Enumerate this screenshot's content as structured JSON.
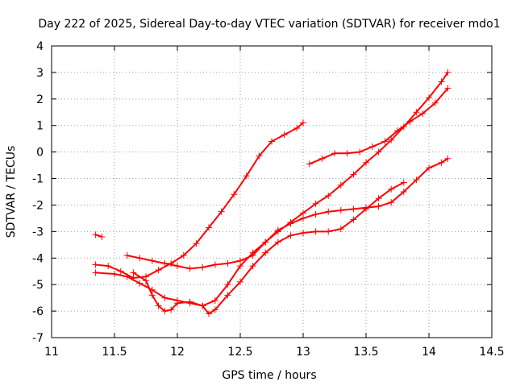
{
  "chart_data": {
    "type": "scatter",
    "title": "Day 222 of 2025, Sidereal Day-to-day VTEC variation (SDTVAR) for receiver mdo1",
    "xlabel": "GPS time / hours",
    "ylabel": "SDTVAR / TECUs",
    "xlim": [
      11,
      14.5
    ],
    "ylim": [
      -7,
      4
    ],
    "xticks": [
      "11",
      "11.5",
      "12",
      "12.5",
      "13",
      "13.5",
      "14",
      "14.5"
    ],
    "yticks": [
      "-7",
      "-6",
      "-5",
      "-4",
      "-3",
      "-2",
      "-1",
      "0",
      "1",
      "2",
      "3",
      "4"
    ],
    "grid": true,
    "color": "#ff0000",
    "series": [
      {
        "points": [
          [
            11.35,
            -3.12
          ],
          [
            11.4,
            -3.2
          ]
        ]
      },
      {
        "points": [
          [
            11.65,
            -4.55
          ],
          [
            11.75,
            -4.85
          ],
          [
            11.8,
            -5.4
          ],
          [
            11.85,
            -5.8
          ],
          [
            11.9,
            -6.0
          ],
          [
            11.95,
            -5.95
          ],
          [
            12.0,
            -5.7
          ],
          [
            12.1,
            -5.65
          ],
          [
            12.2,
            -5.8
          ],
          [
            12.25,
            -6.1
          ],
          [
            12.3,
            -5.95
          ],
          [
            12.4,
            -5.4
          ],
          [
            12.5,
            -4.9
          ],
          [
            12.6,
            -4.3
          ],
          [
            12.7,
            -3.8
          ],
          [
            12.8,
            -3.4
          ],
          [
            12.9,
            -3.15
          ],
          [
            13.0,
            -3.05
          ],
          [
            13.1,
            -3.0
          ],
          [
            13.2,
            -3.0
          ],
          [
            13.3,
            -2.9
          ],
          [
            13.4,
            -2.55
          ],
          [
            13.5,
            -2.15
          ],
          [
            13.6,
            -1.75
          ],
          [
            13.7,
            -1.4
          ],
          [
            13.8,
            -1.15
          ]
        ]
      },
      {
        "points": [
          [
            11.6,
            -3.9
          ],
          [
            11.7,
            -4.0
          ],
          [
            11.8,
            -4.1
          ],
          [
            11.9,
            -4.2
          ],
          [
            12.0,
            -4.3
          ],
          [
            12.1,
            -4.4
          ],
          [
            12.2,
            -4.35
          ],
          [
            12.3,
            -4.25
          ],
          [
            12.4,
            -4.2
          ],
          [
            12.5,
            -4.1
          ],
          [
            12.6,
            -3.9
          ],
          [
            12.7,
            -3.4
          ],
          [
            12.8,
            -2.95
          ],
          [
            12.9,
            -2.7
          ],
          [
            13.0,
            -2.5
          ],
          [
            13.1,
            -2.35
          ],
          [
            13.2,
            -2.25
          ],
          [
            13.3,
            -2.2
          ],
          [
            13.4,
            -2.15
          ],
          [
            13.5,
            -2.1
          ],
          [
            13.6,
            -2.05
          ],
          [
            13.7,
            -1.9
          ],
          [
            13.8,
            -1.5
          ],
          [
            13.9,
            -1.05
          ],
          [
            14.0,
            -0.6
          ],
          [
            14.1,
            -0.4
          ],
          [
            14.15,
            -0.25
          ]
        ]
      },
      {
        "points": [
          [
            11.35,
            -4.25
          ],
          [
            11.45,
            -4.3
          ],
          [
            11.55,
            -4.5
          ],
          [
            11.65,
            -4.75
          ],
          [
            11.75,
            -4.7
          ],
          [
            11.85,
            -4.45
          ],
          [
            11.95,
            -4.2
          ],
          [
            12.05,
            -3.9
          ],
          [
            12.15,
            -3.45
          ],
          [
            12.25,
            -2.85
          ],
          [
            12.35,
            -2.25
          ],
          [
            12.45,
            -1.6
          ],
          [
            12.55,
            -0.9
          ],
          [
            12.65,
            -0.15
          ],
          [
            12.75,
            0.4
          ],
          [
            12.85,
            0.65
          ],
          [
            12.95,
            0.9
          ],
          [
            13.0,
            1.1
          ]
        ]
      },
      {
        "points": [
          [
            11.35,
            -4.55
          ],
          [
            11.5,
            -4.6
          ],
          [
            11.6,
            -4.7
          ],
          [
            11.7,
            -4.95
          ],
          [
            11.8,
            -5.2
          ],
          [
            11.9,
            -5.5
          ],
          [
            12.0,
            -5.6
          ],
          [
            12.1,
            -5.7
          ],
          [
            12.2,
            -5.8
          ],
          [
            12.3,
            -5.6
          ],
          [
            12.4,
            -5.0
          ],
          [
            12.5,
            -4.3
          ],
          [
            12.6,
            -3.8
          ],
          [
            12.7,
            -3.4
          ],
          [
            12.8,
            -3.0
          ],
          [
            12.9,
            -2.65
          ],
          [
            13.0,
            -2.3
          ],
          [
            13.1,
            -1.95
          ],
          [
            13.2,
            -1.65
          ],
          [
            13.3,
            -1.25
          ],
          [
            13.4,
            -0.85
          ],
          [
            13.5,
            -0.4
          ],
          [
            13.6,
            0.0
          ],
          [
            13.7,
            0.45
          ],
          [
            13.8,
            0.95
          ],
          [
            13.9,
            1.5
          ],
          [
            14.0,
            2.05
          ],
          [
            14.1,
            2.65
          ],
          [
            14.15,
            3.0
          ]
        ]
      },
      {
        "points": [
          [
            13.05,
            -0.45
          ],
          [
            13.15,
            -0.25
          ],
          [
            13.25,
            -0.05
          ],
          [
            13.35,
            -0.05
          ],
          [
            13.45,
            0.0
          ],
          [
            13.55,
            0.2
          ],
          [
            13.65,
            0.4
          ],
          [
            13.75,
            0.8
          ],
          [
            13.85,
            1.15
          ],
          [
            13.95,
            1.45
          ],
          [
            14.05,
            1.85
          ],
          [
            14.15,
            2.4
          ]
        ]
      }
    ]
  }
}
